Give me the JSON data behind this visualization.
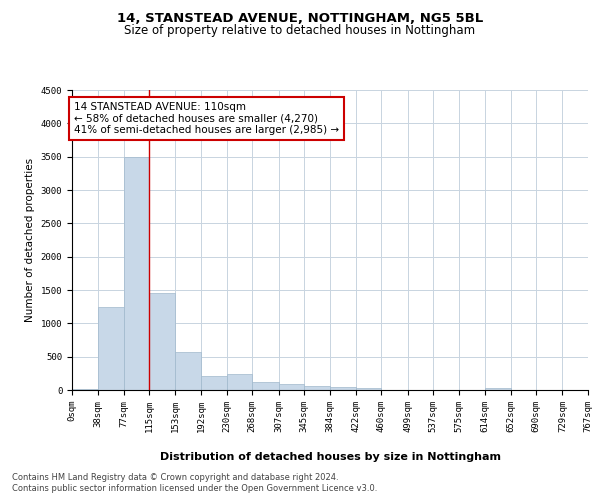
{
  "title1": "14, STANSTEAD AVENUE, NOTTINGHAM, NG5 5BL",
  "title2": "Size of property relative to detached houses in Nottingham",
  "xlabel": "Distribution of detached houses by size in Nottingham",
  "ylabel": "Number of detached properties",
  "bin_edges": [
    0,
    38,
    77,
    115,
    153,
    192,
    230,
    268,
    307,
    345,
    384,
    422,
    460,
    499,
    537,
    575,
    614,
    652,
    690,
    729,
    767
  ],
  "bar_heights": [
    10,
    1250,
    3500,
    1450,
    575,
    215,
    240,
    115,
    85,
    60,
    45,
    30,
    5,
    0,
    0,
    0,
    35,
    0,
    0,
    0
  ],
  "bar_color": "#c8d8e8",
  "bar_edgecolor": "#a0b8cc",
  "annotation_text": "14 STANSTEAD AVENUE: 110sqm\n← 58% of detached houses are smaller (4,270)\n41% of semi-detached houses are larger (2,985) →",
  "annotation_box_color": "#ffffff",
  "annotation_box_edgecolor": "#cc0000",
  "vline_color": "#cc0000",
  "vline_x": 115,
  "ylim": [
    0,
    4500
  ],
  "yticks": [
    0,
    500,
    1000,
    1500,
    2000,
    2500,
    3000,
    3500,
    4000,
    4500
  ],
  "footer_line1": "Contains HM Land Registry data © Crown copyright and database right 2024.",
  "footer_line2": "Contains public sector information licensed under the Open Government Licence v3.0.",
  "bg_color": "#ffffff",
  "grid_color": "#c8d4e0",
  "title1_fontsize": 9.5,
  "title2_fontsize": 8.5,
  "xlabel_fontsize": 8,
  "ylabel_fontsize": 7.5,
  "tick_fontsize": 6.5,
  "annotation_fontsize": 7.5,
  "footer_fontsize": 6.0
}
